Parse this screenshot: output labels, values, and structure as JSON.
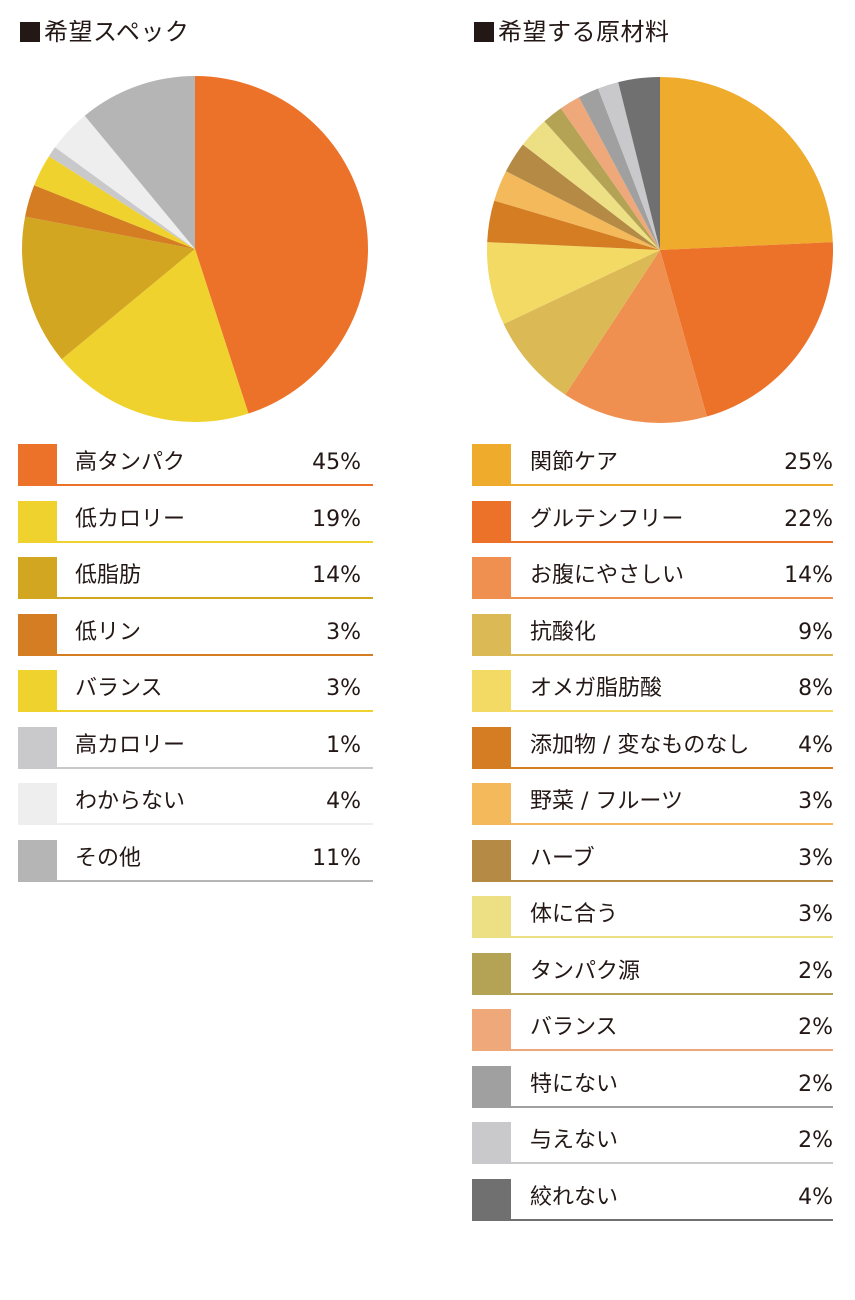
{
  "chart_data": [
    {
      "type": "pie",
      "title": "希望スペック",
      "legend_position": "bottom",
      "categories": [
        "高タンパク",
        "低カロリー",
        "低脂肪",
        "低リン",
        "バランス",
        "高カロリー",
        "わからない",
        "その他"
      ],
      "values": [
        45,
        19,
        14,
        3,
        3,
        1,
        4,
        11
      ],
      "value_labels": [
        "45%",
        "19%",
        "14%",
        "3%",
        "3%",
        "1%",
        "4%",
        "11%"
      ],
      "colors": [
        "#ed7229",
        "#efd22e",
        "#d3a621",
        "#d47d22",
        "#efd22e",
        "#c9c9cb",
        "#eeeeee",
        "#b5b5b6"
      ],
      "unit": "%"
    },
    {
      "type": "pie",
      "title": "希望する原材料",
      "legend_position": "bottom",
      "categories": [
        "関節ケア",
        "グルテンフリー",
        "お腹にやさしい",
        "抗酸化",
        "オメガ脂肪酸",
        "添加物 / 変なものなし",
        "野菜 / フルーツ",
        "ハーブ",
        "体に合う",
        "タンパク源",
        "バランス",
        "特にない",
        "与えない",
        "絞れない"
      ],
      "values": [
        25,
        22,
        14,
        9,
        8,
        4,
        3,
        3,
        3,
        2,
        2,
        2,
        2,
        4
      ],
      "value_labels": [
        "25%",
        "22%",
        "14%",
        "9%",
        "8%",
        "4%",
        "3%",
        "3%",
        "3%",
        "2%",
        "2%",
        "2%",
        "2%",
        "4%"
      ],
      "colors": [
        "#efab2c",
        "#ed7229",
        "#f09050",
        "#dbb955",
        "#f2da65",
        "#d47d22",
        "#f3b95a",
        "#b58a45",
        "#ede084",
        "#b5a355",
        "#efa87a",
        "#a0a0a0",
        "#c9c9cb",
        "#717071"
      ],
      "unit": "%"
    }
  ]
}
